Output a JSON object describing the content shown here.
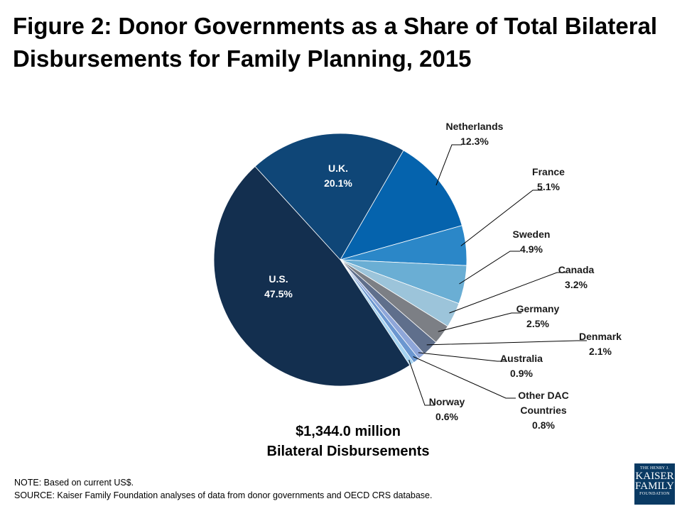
{
  "title": {
    "line1": "Figure 2: Donor Governments as a Share of Total Bilateral",
    "line2": "Disbursements for Family Planning, 2015"
  },
  "chart_data": {
    "type": "pie",
    "title": "Figure 2: Donor Governments as a Share of Total Bilateral Disbursements for Family Planning, 2015",
    "start_angle_deg": 30,
    "direction": "clockwise",
    "slices": [
      {
        "label": "Netherlands",
        "value": 12.3,
        "display": "12.3%",
        "color": "#0563ad"
      },
      {
        "label": "France",
        "value": 5.1,
        "display": "5.1%",
        "color": "#2b87c8"
      },
      {
        "label": "Sweden",
        "value": 4.9,
        "display": "4.9%",
        "color": "#6aaed4"
      },
      {
        "label": "Canada",
        "value": 3.2,
        "display": "3.2%",
        "color": "#9cc4da"
      },
      {
        "label": "Germany",
        "value": 2.5,
        "display": "2.5%",
        "color": "#7c7f85"
      },
      {
        "label": "Denmark",
        "value": 2.1,
        "display": "2.1%",
        "color": "#5f6f8c"
      },
      {
        "label": "Australia",
        "value": 0.9,
        "display": "0.9%",
        "color": "#8ea6d9"
      },
      {
        "label": "Other DAC Countries",
        "value": 0.8,
        "display": "0.8%",
        "color": "#6b97d0"
      },
      {
        "label": "Norway",
        "value": 0.6,
        "display": "0.6%",
        "color": "#a6d3f0"
      },
      {
        "label": "U.S.",
        "value": 47.5,
        "display": "47.5%",
        "color": "#132f4f"
      },
      {
        "label": "U.K.",
        "value": 20.1,
        "display": "20.1%",
        "color": "#0f4677"
      }
    ]
  },
  "total": {
    "amount": "$1,344.0 million",
    "caption": "Bilateral Disbursements"
  },
  "note": "NOTE: Based on current US$.",
  "source": "SOURCE: Kaiser Family Foundation analyses of data from donor governments and OECD CRS database.",
  "logo": {
    "line1": "THE HENRY J.",
    "line2": "KAISER",
    "line3": "FAMILY",
    "line4": "FOUNDATION"
  }
}
